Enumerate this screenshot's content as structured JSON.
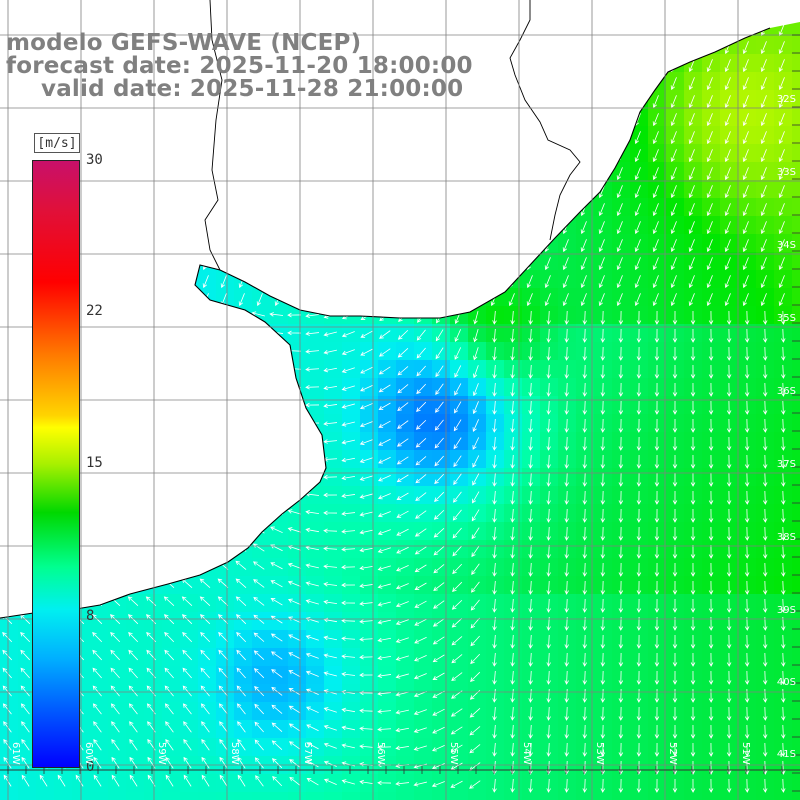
{
  "title": {
    "model": "modelo GEFS-WAVE (NCEP)",
    "forecast": "forecast date: 2025-11-20 18:00:00",
    "valid": "valid date: 2025-11-28 21:00:00"
  },
  "colorbar": {
    "unit": "[m/s]",
    "ticks": [
      {
        "value": 30,
        "label": "30"
      },
      {
        "value": 22,
        "label": "22"
      },
      {
        "value": 15,
        "label": "15"
      },
      {
        "value": 8,
        "label": "8"
      },
      {
        "value": 0,
        "label": "0"
      }
    ],
    "range": [
      0,
      30
    ]
  },
  "axes": {
    "lat_labels": [
      "32S",
      "33S",
      "34S",
      "35S",
      "36S",
      "37S",
      "38S",
      "39S",
      "40S",
      "41S"
    ],
    "lon_labels": [
      "61W",
      "60W",
      "59W",
      "58W",
      "57W",
      "56W",
      "55W",
      "54W",
      "53W",
      "52W",
      "51W"
    ]
  },
  "colors": {
    "land": "#ffffff",
    "coast": "#000000",
    "grid": "#777777",
    "arrows": "#ffffff",
    "title": "#808080"
  }
}
